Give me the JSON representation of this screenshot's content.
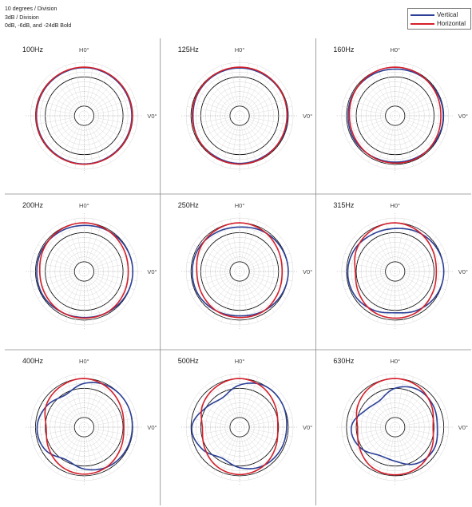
{
  "notes": [
    "10 degrees / Division",
    "3dB / Division",
    "0dB, -6dB, and -24dB Bold"
  ],
  "legend": [
    {
      "label": "Vertical",
      "color": "#2b3f96"
    },
    {
      "label": "Horizontal",
      "color": "#d41f2a"
    }
  ],
  "chart_data": {
    "type": "polar",
    "grid": true,
    "angle_step_deg": 10,
    "db_per_division": 3,
    "bold_rings_db": [
      0,
      -6,
      -24
    ],
    "r_range_db": [
      -30,
      3
    ],
    "labels": {
      "top": "H0°",
      "right": "V0°"
    },
    "series_names": [
      "Vertical",
      "Horizontal"
    ],
    "panels": [
      {
        "title": "100Hz",
        "angles_deg": [
          0,
          30,
          60,
          90,
          120,
          150,
          180,
          210,
          240,
          270,
          300,
          330
        ],
        "vertical": [
          -0.3,
          -0.5,
          -0.6,
          -0.6,
          -0.6,
          -0.5,
          -0.3,
          -0.5,
          -0.6,
          -0.6,
          -0.6,
          -0.5
        ],
        "horizontal": [
          0,
          -0.1,
          -0.2,
          -0.3,
          -0.3,
          -0.2,
          -0.1,
          -0.2,
          -0.3,
          -0.3,
          -0.3,
          -0.1
        ]
      },
      {
        "title": "125Hz",
        "angles_deg": [
          0,
          30,
          60,
          90,
          120,
          150,
          180,
          210,
          240,
          270,
          300,
          330
        ],
        "vertical": [
          -0.5,
          -0.6,
          -0.5,
          -0.4,
          -0.6,
          -0.8,
          -0.6,
          -0.8,
          -0.7,
          -1.2,
          -0.8,
          -0.6
        ],
        "horizontal": [
          0,
          -0.1,
          -0.4,
          -0.8,
          -0.8,
          -0.4,
          -0.2,
          -0.3,
          -0.7,
          -0.8,
          -0.5,
          -0.2
        ]
      },
      {
        "title": "160Hz",
        "angles_deg": [
          0,
          30,
          60,
          90,
          120,
          150,
          180,
          210,
          240,
          270,
          300,
          330
        ],
        "vertical": [
          -1.2,
          -0.8,
          -0.5,
          -0.3,
          -0.5,
          -1,
          -1.4,
          -1.2,
          -0.8,
          -1,
          -0.8,
          -1
        ],
        "horizontal": [
          0,
          -0.4,
          -1.2,
          -1.8,
          -1.2,
          -0.6,
          -0.8,
          -1,
          -1.6,
          -1.8,
          -1,
          -0.3
        ]
      },
      {
        "title": "200Hz",
        "angles_deg": [
          0,
          30,
          60,
          90,
          120,
          150,
          180,
          210,
          240,
          270,
          300,
          330
        ],
        "vertical": [
          -1.6,
          -0.9,
          -0.3,
          0,
          -0.3,
          -1,
          -1.6,
          -1.3,
          -0.6,
          -0.8,
          -0.8,
          -1.3
        ],
        "horizontal": [
          0,
          -0.8,
          -2,
          -2.8,
          -2,
          -1.1,
          -1.2,
          -1.4,
          -2.2,
          -2.6,
          -1.4,
          -0.4
        ]
      },
      {
        "title": "250Hz",
        "angles_deg": [
          0,
          30,
          60,
          90,
          120,
          150,
          180,
          210,
          240,
          270,
          300,
          330
        ],
        "vertical": [
          -2.6,
          -1.4,
          -0.5,
          0,
          -0.5,
          -1.6,
          -2.6,
          -1.8,
          -0.8,
          -0.8,
          -1,
          -2
        ],
        "horizontal": [
          0,
          -1,
          -2.8,
          -3.8,
          -2.8,
          -1.4,
          -1.6,
          -1.8,
          -3,
          -3.6,
          -1.8,
          -0.6
        ]
      },
      {
        "title": "315Hz",
        "angles_deg": [
          0,
          30,
          60,
          90,
          120,
          150,
          180,
          210,
          240,
          270,
          300,
          330
        ],
        "vertical": [
          -3.5,
          -2,
          -0.6,
          0,
          -0.6,
          -2.4,
          -4.5,
          -2.6,
          -1,
          -0.8,
          -1.6,
          -3.2
        ],
        "horizontal": [
          0,
          -1.4,
          -3.4,
          -4.6,
          -3.4,
          -1.6,
          -1.2,
          -1.8,
          -4,
          -5.4,
          -2.6,
          -0.8
        ]
      },
      {
        "title": "400Hz",
        "angles_deg": [
          0,
          30,
          60,
          90,
          120,
          150,
          180,
          210,
          240,
          270,
          300,
          330
        ],
        "vertical": [
          -3,
          -0.6,
          0,
          -0.3,
          -0.6,
          -1.6,
          -4.2,
          -7,
          -2.2,
          -1,
          -3.5,
          -7
        ],
        "horizontal": [
          0,
          -1.6,
          -4,
          -5.5,
          -4,
          -1.8,
          -1,
          -2,
          -4.6,
          -6.6,
          -3,
          -1
        ]
      },
      {
        "title": "500Hz",
        "angles_deg": [
          0,
          30,
          60,
          90,
          120,
          150,
          180,
          210,
          240,
          270,
          300,
          330
        ],
        "vertical": [
          -4,
          -0.3,
          0,
          -1,
          -1.2,
          -2.2,
          -5,
          -8,
          -3.2,
          -0.5,
          -6,
          -9
        ],
        "horizontal": [
          0,
          -1.6,
          -4.5,
          -6.5,
          -4.5,
          -1.8,
          -0.8,
          -2,
          -5,
          -7,
          -3.5,
          -1.2
        ]
      },
      {
        "title": "630Hz",
        "angles_deg": [
          0,
          30,
          60,
          90,
          120,
          150,
          180,
          210,
          240,
          270,
          300,
          330
        ],
        "vertical": [
          -6,
          -3,
          -3,
          -4,
          -2.5,
          -4,
          -9,
          -10,
          -5,
          -3,
          -9,
          -11
        ],
        "horizontal": [
          0,
          -1.2,
          -4,
          -6.6,
          -4,
          -1.4,
          -0.6,
          -1.4,
          -4.6,
          -6.8,
          -3.4,
          -0.8
        ]
      }
    ]
  }
}
